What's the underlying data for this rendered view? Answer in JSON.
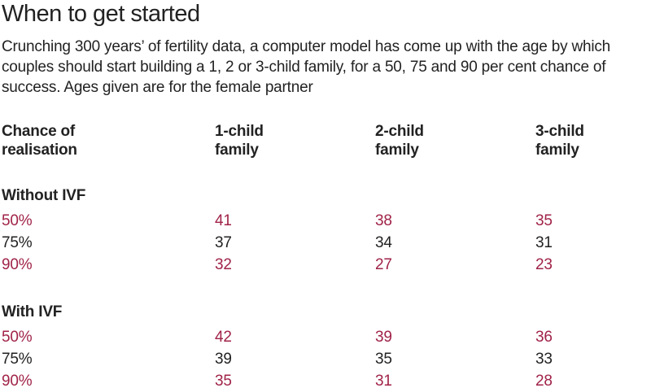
{
  "page": {
    "title": "When to get started",
    "description": "Crunching 300 years’ of fertility data, a computer model has come up with the age by which couples should start building a 1, 2 or 3-child family, for a 50, 75 and 90 per cent chance of success. Ages given are for the female partner"
  },
  "colors": {
    "accent": "#a02348",
    "ink": "#222222",
    "background": "#ffffff"
  },
  "header_lines": [
    [
      "Chance of",
      "realisation"
    ],
    [
      "1-child",
      "family"
    ],
    [
      "2-child",
      "family"
    ],
    [
      "3-child",
      "family"
    ]
  ],
  "chart_data": {
    "type": "table",
    "title": "When to get started",
    "columns": [
      "Chance of realisation",
      "1-child family",
      "2-child family",
      "3-child family"
    ],
    "sections": [
      {
        "label": "Without IVF",
        "rows": [
          {
            "chance": "50%",
            "values": [
              41,
              38,
              35
            ],
            "highlight": true
          },
          {
            "chance": "75%",
            "values": [
              37,
              34,
              31
            ],
            "highlight": false
          },
          {
            "chance": "90%",
            "values": [
              32,
              27,
              23
            ],
            "highlight": true
          }
        ]
      },
      {
        "label": "With IVF",
        "rows": [
          {
            "chance": "50%",
            "values": [
              42,
              39,
              36
            ],
            "highlight": true
          },
          {
            "chance": "75%",
            "values": [
              39,
              35,
              33
            ],
            "highlight": false
          },
          {
            "chance": "90%",
            "values": [
              35,
              31,
              28
            ],
            "highlight": true
          }
        ]
      }
    ]
  }
}
